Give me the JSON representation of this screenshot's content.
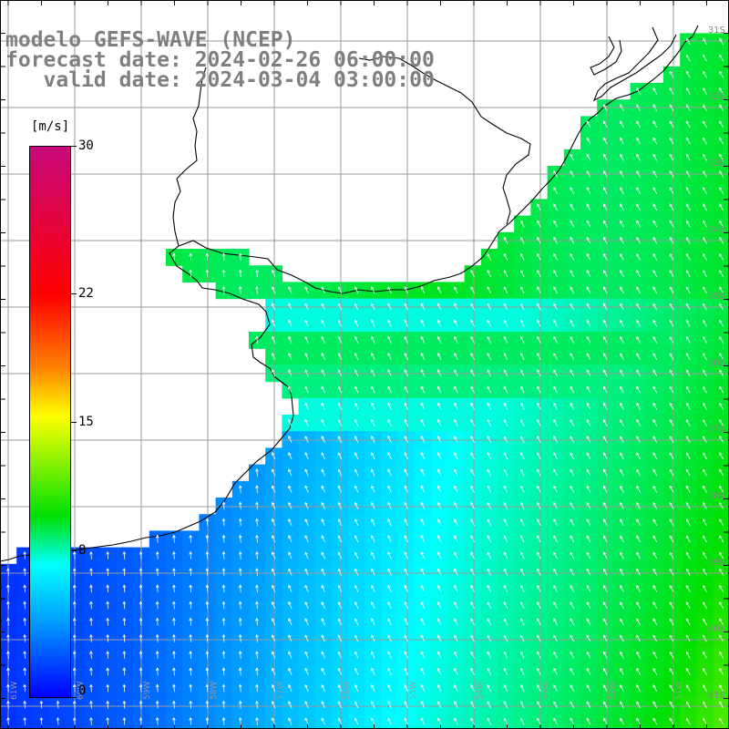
{
  "header": {
    "model_line": "modelo GEFS-WAVE (NCEP)",
    "forecast_line": "forecast date: 2024-02-26 06:00:00",
    "valid_line": "   valid date: 2024-03-04 03:00:00"
  },
  "colorbar": {
    "unit": "[m/s]",
    "ticks": [
      "30",
      "22",
      "15",
      "8",
      "0"
    ],
    "tick_values": [
      30,
      22,
      15,
      8,
      0
    ],
    "colors": [
      "#0000ff",
      "#00a0ff",
      "#00ffff",
      "#00e000",
      "#ffff00",
      "#ff8000",
      "#ff0000",
      "#c8087c"
    ]
  },
  "map": {
    "variable": "wind speed and direction",
    "land_color": "#ffffff",
    "coastline_color": "#000000",
    "grid_color": "#9a9a9a",
    "arrow_color": "#ffffff",
    "lat_labels": [
      "31S",
      "32S",
      "33S",
      "34S",
      "35S",
      "36S",
      "37S",
      "38S",
      "39S",
      "40S",
      "41S"
    ],
    "lon_labels": [
      "61W",
      "60W",
      "59W",
      "58W",
      "57W",
      "56W",
      "55W",
      "54W",
      "53W",
      "52W",
      "51W"
    ]
  }
}
